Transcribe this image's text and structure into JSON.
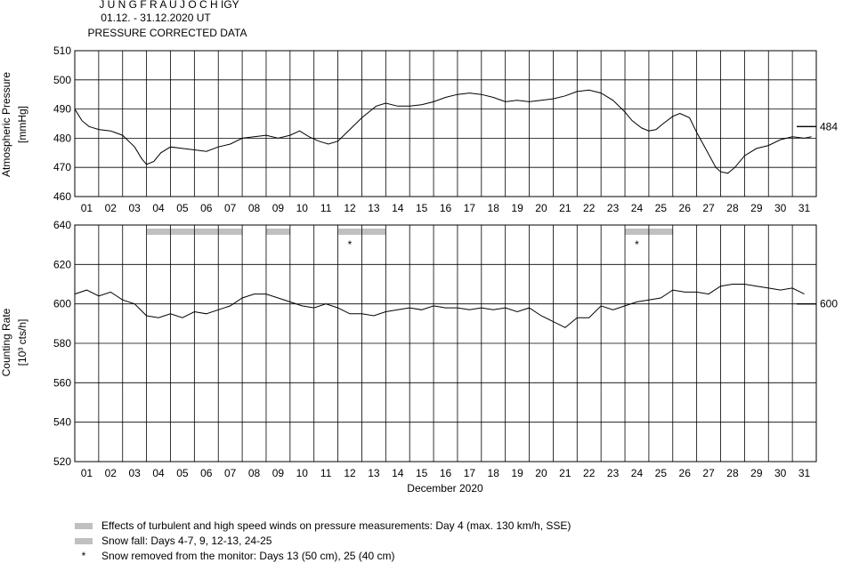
{
  "header": {
    "station": "J U N G F R A U J O C H  IGY",
    "period": "01.12. - 31.12.2020  UT",
    "subtitle": "PRESSURE CORRECTED DATA"
  },
  "chart_data": [
    {
      "type": "line",
      "ylabel_line1": "Atmospheric Pressure",
      "ylabel_line2": "[mmHg]",
      "ylim": [
        460,
        510
      ],
      "yticks": [
        460,
        470,
        480,
        490,
        500,
        510
      ],
      "xlim": [
        1,
        32
      ],
      "xtick_labels": [
        "01",
        "02",
        "03",
        "04",
        "05",
        "06",
        "07",
        "08",
        "09",
        "10",
        "11",
        "12",
        "13",
        "14",
        "15",
        "16",
        "17",
        "18",
        "19",
        "20",
        "21",
        "22",
        "23",
        "24",
        "25",
        "26",
        "27",
        "28",
        "29",
        "30",
        "31"
      ],
      "reference": {
        "value": 484,
        "label": "484"
      },
      "series": [
        {
          "x": [
            1.0,
            1.3,
            1.6,
            2.0,
            2.5,
            3.0,
            3.5,
            3.8,
            4.0,
            4.3,
            4.6,
            5.0,
            5.5,
            6.0,
            6.5,
            7.0,
            7.5,
            8.0,
            8.5,
            9.0,
            9.5,
            10.0,
            10.4,
            10.8,
            11.2,
            11.6,
            12.0,
            12.5,
            13.0,
            13.3,
            13.6,
            14.0,
            14.5,
            15.0,
            15.5,
            16.0,
            16.5,
            17.0,
            17.5,
            18.0,
            18.5,
            19.0,
            19.5,
            20.0,
            20.5,
            21.0,
            21.5,
            22.0,
            22.5,
            23.0,
            23.5,
            24.0,
            24.3,
            24.7,
            25.0,
            25.3,
            25.6,
            26.0,
            26.3,
            26.7,
            27.0,
            27.4,
            27.8,
            28.0,
            28.3,
            28.6,
            29.0,
            29.5,
            30.0,
            30.5,
            31.0,
            31.5,
            31.8
          ],
          "y": [
            490,
            486,
            484,
            483,
            482.5,
            481,
            477,
            473,
            471,
            472,
            475,
            477,
            476.5,
            476,
            475.5,
            477,
            478,
            480,
            480.5,
            481,
            480,
            481,
            482.5,
            480.5,
            479,
            478,
            479,
            483,
            487,
            489,
            491,
            492,
            491,
            491,
            491.5,
            492.5,
            494,
            495,
            495.5,
            495,
            494,
            492.5,
            493,
            492.5,
            493,
            493.5,
            494.5,
            496,
            496.5,
            495.5,
            493,
            489,
            486,
            483.5,
            482.5,
            483,
            485,
            487.5,
            488.5,
            487,
            482,
            476,
            470,
            468.5,
            468,
            470,
            474,
            476.5,
            477.5,
            479.5,
            480.5,
            480,
            480.5
          ]
        }
      ]
    },
    {
      "type": "line",
      "ylabel_line1": "Counting Rate",
      "ylabel_line2": "[10³ cts/h]",
      "ylim": [
        520,
        640
      ],
      "yticks": [
        520,
        540,
        560,
        580,
        600,
        620,
        640
      ],
      "xlim": [
        1,
        32
      ],
      "xlabel": "December 2020",
      "xtick_labels": [
        "01",
        "02",
        "03",
        "04",
        "05",
        "06",
        "07",
        "08",
        "09",
        "10",
        "11",
        "12",
        "13",
        "14",
        "15",
        "16",
        "17",
        "18",
        "19",
        "20",
        "21",
        "22",
        "23",
        "24",
        "25",
        "26",
        "27",
        "28",
        "29",
        "30",
        "31"
      ],
      "reference": {
        "value": 600,
        "label": "600"
      },
      "shaded_day_ranges": [
        [
          4,
          7
        ],
        [
          9,
          9
        ],
        [
          12,
          13
        ],
        [
          24,
          25
        ]
      ],
      "snow_removed_days": [
        13,
        25
      ],
      "series": [
        {
          "x": [
            1.0,
            1.5,
            2.0,
            2.5,
            3.0,
            3.5,
            4.0,
            4.5,
            5.0,
            5.5,
            6.0,
            6.5,
            7.0,
            7.5,
            8.0,
            8.5,
            9.0,
            9.5,
            10.0,
            10.5,
            11.0,
            11.5,
            12.0,
            12.5,
            13.0,
            13.5,
            14.0,
            14.5,
            15.0,
            15.5,
            16.0,
            16.5,
            17.0,
            17.5,
            18.0,
            18.5,
            19.0,
            19.5,
            20.0,
            20.5,
            21.0,
            21.5,
            22.0,
            22.5,
            23.0,
            23.5,
            24.0,
            24.5,
            25.0,
            25.5,
            26.0,
            26.5,
            27.0,
            27.5,
            28.0,
            28.5,
            29.0,
            29.5,
            30.0,
            30.5,
            31.0,
            31.5
          ],
          "y": [
            605,
            607,
            604,
            606,
            602,
            600,
            594,
            593,
            595,
            593,
            596,
            595,
            597,
            599,
            603,
            605,
            605,
            603,
            601,
            599,
            598,
            600,
            598,
            595,
            595,
            594,
            596,
            597,
            598,
            597,
            599,
            598,
            598,
            597,
            598,
            597,
            598,
            596,
            598,
            594,
            591,
            588,
            593,
            593,
            599,
            597,
            599,
            601,
            602,
            603,
            607,
            606,
            606,
            605,
            609,
            610,
            610,
            609,
            608,
            607,
            608,
            605
          ]
        }
      ]
    }
  ],
  "legend": {
    "wind": "Effects of turbulent and high speed winds on pressure measurements: Day 4 (max. 130 km/h, SSE)",
    "snow": "Snow fall: Days 4-7, 9, 12-13, 24-25",
    "removed": "Snow removed from the monitor: Days 13 (50 cm), 25 (40 cm)",
    "star_symbol": "*"
  },
  "colors": {
    "line": "#000000",
    "grid": "#000000",
    "shade": "#c0c0c0"
  }
}
